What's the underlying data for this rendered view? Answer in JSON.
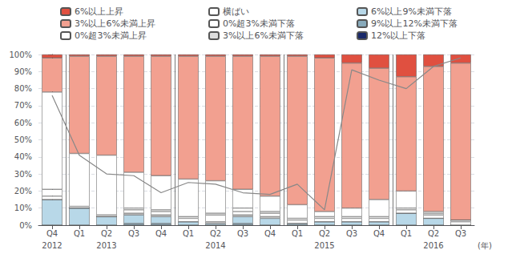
{
  "chart_data": {
    "type": "bar",
    "stacked": true,
    "categories": [
      "Q4",
      "Q1",
      "Q2",
      "Q3",
      "Q4",
      "Q1",
      "Q2",
      "Q3",
      "Q4",
      "Q1",
      "Q2",
      "Q3",
      "Q4",
      "Q1",
      "Q2",
      "Q3"
    ],
    "xlabel": "(年)",
    "annotations": [
      {
        "text": "2012",
        "x": 0
      },
      {
        "text": "2013",
        "x": 2
      },
      {
        "text": "2014",
        "x": 6
      },
      {
        "text": "2015",
        "x": 10
      },
      {
        "text": "2016",
        "x": 14
      }
    ],
    "year_dividers": [
      0.5,
      4.5,
      8.5,
      12.5
    ],
    "series": [
      {
        "name": "12%以上下落",
        "color": "#1A2A6A",
        "values": [
          0,
          0,
          0,
          0,
          0,
          0,
          0,
          0,
          0,
          0,
          0,
          0,
          0,
          0,
          0,
          0
        ]
      },
      {
        "name": "9%以上12%未満下落",
        "color": "#88AABB",
        "values": [
          0,
          0,
          0,
          1,
          1,
          0,
          0,
          1,
          0,
          0,
          0,
          0,
          0,
          0,
          0,
          0
        ]
      },
      {
        "name": "6%以上9%未満下落",
        "color": "#B8D8E8",
        "values": [
          15,
          10,
          5,
          5,
          4,
          2,
          1,
          4,
          4,
          1,
          2,
          2,
          2,
          7,
          4,
          0
        ]
      },
      {
        "name": "3%以上6%未満下落",
        "color": "#DDDDDD",
        "values": [
          0,
          0,
          0,
          1,
          1,
          0,
          1,
          1,
          1,
          0,
          0,
          0,
          0,
          0,
          0,
          0
        ]
      },
      {
        "name": "0%超3%未満下落",
        "color": "#FFFFFF",
        "values": [
          2,
          0,
          0,
          2,
          2,
          2,
          4,
          2,
          2,
          2,
          2,
          2,
          2,
          2,
          2,
          2
        ]
      },
      {
        "name": "横ばい",
        "color": "#FFFFFF",
        "values": [
          4,
          1,
          1,
          1,
          1,
          1,
          1,
          2,
          1,
          1,
          1,
          1,
          1,
          1,
          1,
          1
        ]
      },
      {
        "name": "0%超3%未満上昇",
        "color": "#FFFFFF",
        "values": [
          57,
          31,
          35,
          21,
          20,
          22,
          19,
          11,
          9,
          8,
          3,
          5,
          10,
          10,
          1,
          0
        ]
      },
      {
        "name": "3%以上6%未満上昇",
        "color": "#F2A090",
        "values": [
          20,
          57,
          58,
          68,
          70,
          72,
          73,
          78,
          82,
          87,
          90,
          85,
          77,
          67,
          85,
          92
        ]
      },
      {
        "name": "6%以上上昇",
        "color": "#E05040",
        "values": [
          2,
          1,
          1,
          1,
          1,
          1,
          1,
          1,
          1,
          1,
          2,
          5,
          8,
          13,
          7,
          5
        ]
      },
      {
        "type": "line",
        "color": "#888888",
        "values": [
          76,
          41,
          30,
          29,
          19,
          25,
          24,
          19,
          18,
          24,
          9,
          91,
          85,
          80,
          93,
          98
        ]
      }
    ],
    "ylim": [
      0,
      100
    ],
    "yticks": [
      {
        "value": 0,
        "label": "0%"
      },
      {
        "value": 10,
        "label": "10%"
      },
      {
        "value": 20,
        "label": "20%"
      },
      {
        "value": 30,
        "label": "30%"
      },
      {
        "value": 40,
        "label": "40%"
      },
      {
        "value": 50,
        "label": "50%"
      },
      {
        "value": 60,
        "label": "60%"
      },
      {
        "value": 70,
        "label": "70%"
      },
      {
        "value": 80,
        "label": "80%"
      },
      {
        "value": 90,
        "label": "90%"
      },
      {
        "value": 100,
        "label": "100%"
      }
    ],
    "grid": true,
    "legend": "top"
  }
}
